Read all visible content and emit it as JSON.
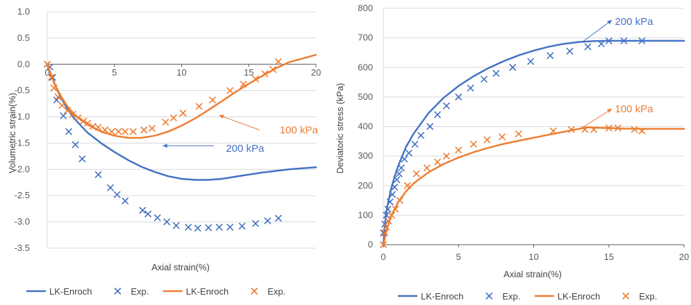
{
  "colors": {
    "blue": "#4472C4",
    "orange": "#ED7D31",
    "grid": "#D9D9D9",
    "axis": "#595959"
  },
  "chart_data": [
    {
      "type": "line",
      "title": "",
      "xlabel": "Axial strain(%)",
      "ylabel": "Volumetric strain(%)",
      "xlim": [
        0,
        20
      ],
      "ylim": [
        -3.5,
        1.0
      ],
      "x_ticks": [
        "0",
        "5",
        "10",
        "15",
        "20"
      ],
      "y_ticks": [
        "1.0",
        "0.5",
        "0.0",
        "-0.5",
        "-1.0",
        "-1.5",
        "-2.0",
        "-2.5",
        "-3.0",
        "-3.5"
      ],
      "x_tick_values": [
        0,
        5,
        10,
        15,
        20
      ],
      "y_tick_values": [
        1.0,
        0.5,
        0.0,
        -0.5,
        -1.0,
        -1.5,
        -2.0,
        -2.5,
        -3.0,
        -3.5
      ],
      "x_axis_at_y": 0,
      "grid": "horizontal",
      "legend_position": "bottom",
      "series": [
        {
          "name": "LK-Enroch",
          "kind": "line",
          "color": "#4472C4",
          "x": [
            0,
            0.3,
            0.6,
            1,
            1.5,
            2,
            3,
            4,
            5,
            6,
            7,
            8,
            9,
            10,
            11,
            12,
            13,
            14,
            15,
            16,
            17,
            18,
            19,
            20
          ],
          "y": [
            0,
            -0.2,
            -0.4,
            -0.62,
            -0.85,
            -1.03,
            -1.3,
            -1.5,
            -1.67,
            -1.82,
            -1.95,
            -2.05,
            -2.13,
            -2.18,
            -2.2,
            -2.2,
            -2.18,
            -2.14,
            -2.1,
            -2.06,
            -2.03,
            -2.0,
            -1.98,
            -1.96
          ]
        },
        {
          "name": "Exp.",
          "kind": "markers",
          "color": "#4472C4",
          "x": [
            0,
            0.2,
            0.4,
            0.7,
            1.2,
            1.6,
            2.1,
            2.6,
            3.8,
            4.7,
            5.2,
            5.8,
            7.1,
            7.5,
            8.2,
            8.9,
            9.6,
            10.5,
            11.2,
            12.0,
            12.8,
            13.6,
            14.5,
            15.5,
            16.4,
            17.2
          ],
          "y": [
            0,
            -0.05,
            -0.25,
            -0.68,
            -0.98,
            -1.28,
            -1.53,
            -1.8,
            -2.1,
            -2.35,
            -2.48,
            -2.6,
            -2.78,
            -2.85,
            -2.92,
            -3.0,
            -3.07,
            -3.1,
            -3.12,
            -3.11,
            -3.1,
            -3.1,
            -3.08,
            -3.03,
            -2.98,
            -2.93
          ]
        },
        {
          "name": "LK-Enroch",
          "kind": "line",
          "color": "#ED7D31",
          "x": [
            0,
            0.5,
            1,
            1.5,
            2,
            3,
            4,
            5,
            6,
            7,
            8,
            9,
            10,
            11,
            12,
            13,
            14,
            15,
            16,
            17,
            18,
            19,
            20
          ],
          "y": [
            0,
            -0.35,
            -0.6,
            -0.8,
            -0.95,
            -1.15,
            -1.28,
            -1.36,
            -1.4,
            -1.4,
            -1.36,
            -1.28,
            -1.17,
            -1.03,
            -0.87,
            -0.7,
            -0.53,
            -0.37,
            -0.22,
            -0.08,
            0.04,
            0.11,
            0.18
          ]
        },
        {
          "name": "Exp.",
          "kind": "markers",
          "color": "#ED7D31",
          "x": [
            0,
            0.3,
            0.5,
            0.8,
            1.1,
            1.5,
            1.9,
            2.3,
            2.7,
            3.0,
            3.4,
            3.8,
            4.3,
            4.8,
            5.3,
            5.8,
            6.4,
            7.2,
            7.8,
            8.8,
            9.4,
            10.1,
            11.3,
            12.3,
            13.6,
            14.6,
            15.5,
            16.2,
            16.8,
            17.2
          ],
          "y": [
            0,
            -0.25,
            -0.45,
            -0.62,
            -0.78,
            -0.88,
            -0.95,
            -1.02,
            -1.08,
            -1.12,
            -1.18,
            -1.2,
            -1.25,
            -1.28,
            -1.28,
            -1.28,
            -1.28,
            -1.25,
            -1.22,
            -1.1,
            -1.02,
            -0.93,
            -0.8,
            -0.68,
            -0.5,
            -0.38,
            -0.28,
            -0.18,
            -0.1,
            0.05
          ]
        }
      ],
      "annotations": [
        {
          "text": "100 kPa",
          "color": "#ED7D31",
          "at": [
            17.3,
            -1.25
          ],
          "arrow_from": [
            15.8,
            -1.25
          ],
          "arrow_to": [
            12.8,
            -0.97
          ]
        },
        {
          "text": "200 kPa",
          "color": "#4472C4",
          "at": [
            13.3,
            -1.6
          ],
          "arrow_from": [
            12.4,
            -1.55
          ],
          "arrow_to": [
            8.6,
            -1.55
          ]
        }
      ]
    },
    {
      "type": "line",
      "title": "",
      "xlabel": "Axial strain(%)",
      "ylabel": "Deviatoric stress (kPa)",
      "xlim": [
        0,
        20
      ],
      "ylim": [
        0,
        800
      ],
      "x_ticks": [
        "0",
        "5",
        "10",
        "15",
        "20"
      ],
      "y_ticks": [
        "0",
        "100",
        "200",
        "300",
        "400",
        "500",
        "600",
        "700",
        "800"
      ],
      "x_tick_values": [
        0,
        5,
        10,
        15,
        20
      ],
      "y_tick_values": [
        0,
        100,
        200,
        300,
        400,
        500,
        600,
        700,
        800
      ],
      "x_axis_at_y": 0,
      "grid": "horizontal",
      "legend_position": "bottom",
      "series": [
        {
          "name": "LK-Enroch",
          "kind": "line",
          "color": "#4472C4",
          "x": [
            0,
            0.1,
            0.25,
            0.5,
            0.75,
            1,
            1.5,
            2,
            3,
            4,
            5,
            6,
            7,
            8,
            9,
            10,
            11,
            12,
            13,
            14,
            15,
            16,
            17,
            18,
            19,
            20
          ],
          "y": [
            0,
            70,
            125,
            185,
            230,
            268,
            330,
            375,
            445,
            497,
            537,
            570,
            598,
            621,
            641,
            657,
            670,
            680,
            686,
            689,
            690,
            690,
            690,
            690,
            690,
            690
          ]
        },
        {
          "name": "Exp.",
          "kind": "markers",
          "color": "#4472C4",
          "x": [
            0,
            0.1,
            0.2,
            0.3,
            0.45,
            0.6,
            0.75,
            0.9,
            1.05,
            1.2,
            1.4,
            1.7,
            2.1,
            2.5,
            3.1,
            3.6,
            4.2,
            5.0,
            5.8,
            6.7,
            7.5,
            8.6,
            9.8,
            11.1,
            12.4,
            13.6,
            14.5,
            15.0,
            16.0,
            17.2
          ],
          "y": [
            40,
            70,
            100,
            120,
            145,
            170,
            195,
            220,
            240,
            260,
            290,
            310,
            340,
            370,
            400,
            440,
            470,
            500,
            530,
            560,
            580,
            600,
            620,
            640,
            655,
            670,
            680,
            690,
            690,
            690
          ]
        },
        {
          "name": "LK-Enroch",
          "kind": "line",
          "color": "#ED7D31",
          "x": [
            0,
            0.25,
            0.5,
            1,
            1.5,
            2,
            3,
            4,
            5,
            6,
            7,
            8,
            9,
            10,
            11,
            12,
            13,
            13.5,
            14,
            15,
            16,
            17,
            18,
            19,
            20
          ],
          "y": [
            0,
            55,
            95,
            145,
            180,
            207,
            245,
            273,
            295,
            313,
            328,
            341,
            352,
            362,
            372,
            382,
            392,
            397,
            396,
            395,
            393,
            392,
            392,
            392,
            392
          ]
        },
        {
          "name": "Exp.",
          "kind": "markers",
          "color": "#ED7D31",
          "x": [
            0,
            0.1,
            0.2,
            0.35,
            0.55,
            0.8,
            1.1,
            1.6,
            2.2,
            2.9,
            3.6,
            4.2,
            5.0,
            6.0,
            6.9,
            7.9,
            9.0,
            11.3,
            12.5,
            13.4,
            14.0,
            15.0,
            15.6,
            16.7,
            17.2
          ],
          "y": [
            0,
            40,
            60,
            80,
            100,
            120,
            150,
            200,
            240,
            260,
            280,
            300,
            320,
            340,
            355,
            365,
            375,
            385,
            390,
            390,
            390,
            395,
            395,
            390,
            385
          ]
        }
      ],
      "annotations": [
        {
          "text": "200 kPa",
          "color": "#4472C4",
          "at": [
            15.4,
            755
          ],
          "arrow_from": [
            13.2,
            685
          ],
          "arrow_to": [
            15.2,
            760
          ]
        },
        {
          "text": "100 kPa",
          "color": "#ED7D31",
          "at": [
            15.4,
            460
          ],
          "arrow_from": [
            13.2,
            395
          ],
          "arrow_to": [
            15.2,
            460
          ]
        }
      ]
    }
  ],
  "legends": [
    [
      {
        "label": "LK-Enroch",
        "kind": "line",
        "color": "#4472C4"
      },
      {
        "label": "Exp.",
        "kind": "marker",
        "color": "#4472C4"
      },
      {
        "label": "LK-Enroch",
        "kind": "line",
        "color": "#ED7D31"
      },
      {
        "label": "Exp.",
        "kind": "marker",
        "color": "#ED7D31"
      }
    ],
    [
      {
        "label": "LK-Enroch",
        "kind": "line",
        "color": "#4472C4"
      },
      {
        "label": "Exp.",
        "kind": "marker",
        "color": "#4472C4"
      },
      {
        "label": "LK-Enroch",
        "kind": "line",
        "color": "#ED7D31"
      },
      {
        "label": "Exp.",
        "kind": "marker",
        "color": "#ED7D31"
      }
    ]
  ]
}
